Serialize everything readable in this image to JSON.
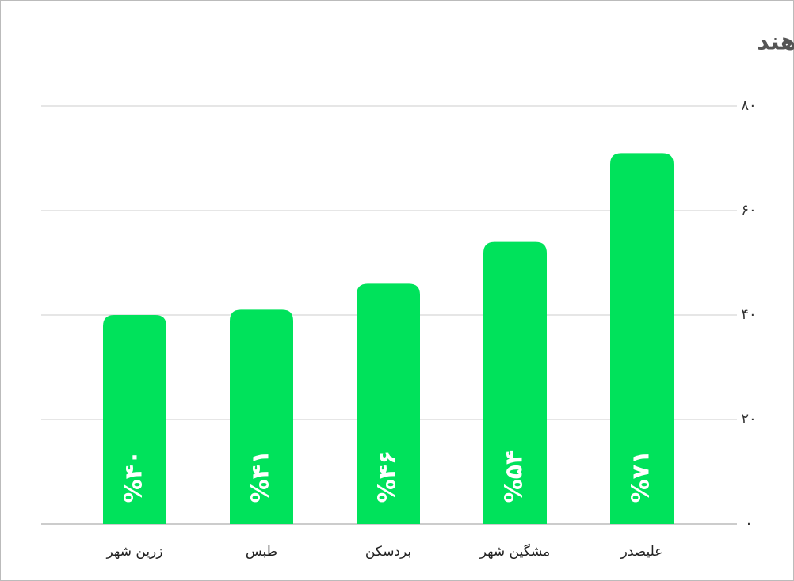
{
  "chart_data": {
    "type": "bar",
    "title": "در کدام شهرها مردم بیشتر امتیاز می‌دهند",
    "categories": [
      "زرین شهر",
      "طبس",
      "بردسکن",
      "مشگین شهر",
      "علیصدر"
    ],
    "values": [
      40,
      41,
      46,
      54,
      71
    ],
    "value_labels": [
      "%۴۰",
      "%۴۱",
      "%۴۶",
      "%۵۴",
      "%۷۱"
    ],
    "color": "#00e25b",
    "ylim": [
      0,
      80
    ],
    "yticks": [
      {
        "value": 0,
        "label": "۰"
      },
      {
        "value": 20,
        "label": "۲۰"
      },
      {
        "value": 40,
        "label": "۴۰"
      },
      {
        "value": 60,
        "label": "۶۰"
      },
      {
        "value": 80,
        "label": "۸۰"
      }
    ],
    "grid": true
  }
}
